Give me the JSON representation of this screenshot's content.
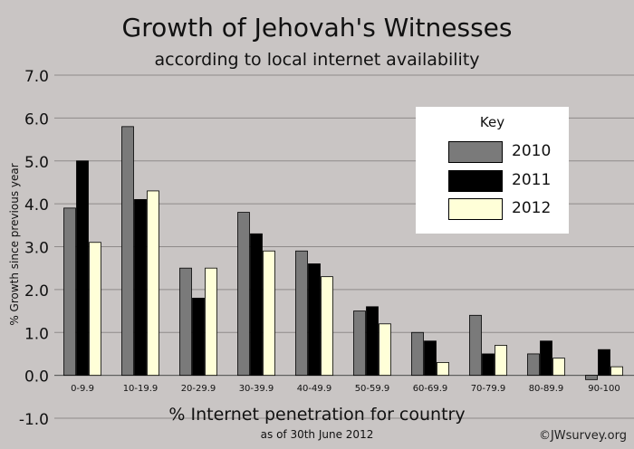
{
  "chart_data": {
    "type": "bar",
    "title": "Growth of Jehovah's Witnesses",
    "subtitle": "according to local internet availability",
    "xlabel": "% Internet penetration for country",
    "xlabel_sub": "as of 30th June 2012",
    "ylabel": "% Growth since previous year",
    "ylim": [
      -1.0,
      7.0
    ],
    "yticks": [
      "-1.0",
      "0.0",
      "1.0",
      "2.0",
      "3.0",
      "4.0",
      "5.0",
      "6.0",
      "7.0"
    ],
    "grid": "horizontal",
    "categories": [
      "0-9.9",
      "10-19.9",
      "20-29.9",
      "30-39.9",
      "40-49.9",
      "50-59.9",
      "60-69.9",
      "70-79.9",
      "80-89.9",
      "90-100"
    ],
    "series": [
      {
        "name": "2010",
        "color": "#7a7a7a",
        "values": [
          3.9,
          5.8,
          2.5,
          3.8,
          2.9,
          1.5,
          1.0,
          1.4,
          0.5,
          -0.1
        ]
      },
      {
        "name": "2011",
        "color": "#000000",
        "values": [
          5.0,
          4.1,
          1.8,
          3.3,
          2.6,
          1.6,
          0.8,
          0.5,
          0.8,
          0.6
        ]
      },
      {
        "name": "2012",
        "color": "#ffffd8",
        "values": [
          3.1,
          4.3,
          2.5,
          2.9,
          2.3,
          1.2,
          0.3,
          0.7,
          0.4,
          0.2
        ]
      }
    ],
    "legend": {
      "title": "Key",
      "placement": "top-right"
    }
  },
  "credit": "©JWsurvey.org"
}
